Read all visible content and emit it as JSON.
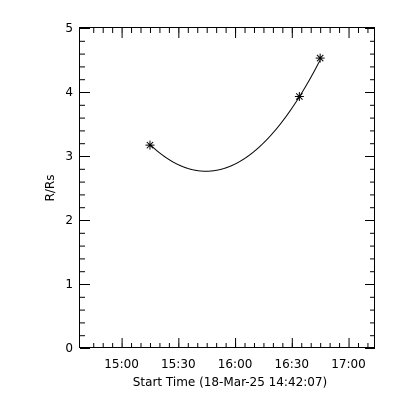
{
  "chart_data": {
    "type": "scatter",
    "title": "",
    "xlabel": "Start Time (18-Mar-25 14:42:07)",
    "ylabel": "R/Rs",
    "x_tick_labels": [
      "15:00",
      "15:30",
      "16:00",
      "16:30",
      "17:00"
    ],
    "x_tick_values_min": [
      18,
      48,
      78,
      108,
      138
    ],
    "x_range_min": [
      -4,
      152
    ],
    "y_ticks": [
      0,
      1,
      2,
      3,
      4,
      5
    ],
    "ylim": [
      0,
      5
    ],
    "series": [
      {
        "points": [
          {
            "x_min": 33,
            "y": 3.17
          },
          {
            "x_min": 112,
            "y": 3.93
          },
          {
            "x_min": 123,
            "y": 4.53
          }
        ],
        "marker": "asterisk"
      }
    ],
    "fit_curve": {
      "form": "quadratic",
      "points": [
        {
          "x_min": 33,
          "y": 3.14
        },
        {
          "x_min": 45,
          "y": 2.94
        },
        {
          "x_min": 55,
          "y": 2.81
        },
        {
          "x_min": 60,
          "y": 2.78
        },
        {
          "x_min": 70,
          "y": 2.8
        },
        {
          "x_min": 85,
          "y": 2.99
        },
        {
          "x_min": 100,
          "y": 3.37
        },
        {
          "x_min": 112,
          "y": 3.93
        },
        {
          "x_min": 117,
          "y": 4.17
        },
        {
          "x_min": 123,
          "y": 4.53
        }
      ]
    },
    "grid": false,
    "legend": "none",
    "colors": {
      "background": "#ffffff",
      "axes": "#000000",
      "curve": "#000000",
      "markers": "#000000"
    }
  }
}
